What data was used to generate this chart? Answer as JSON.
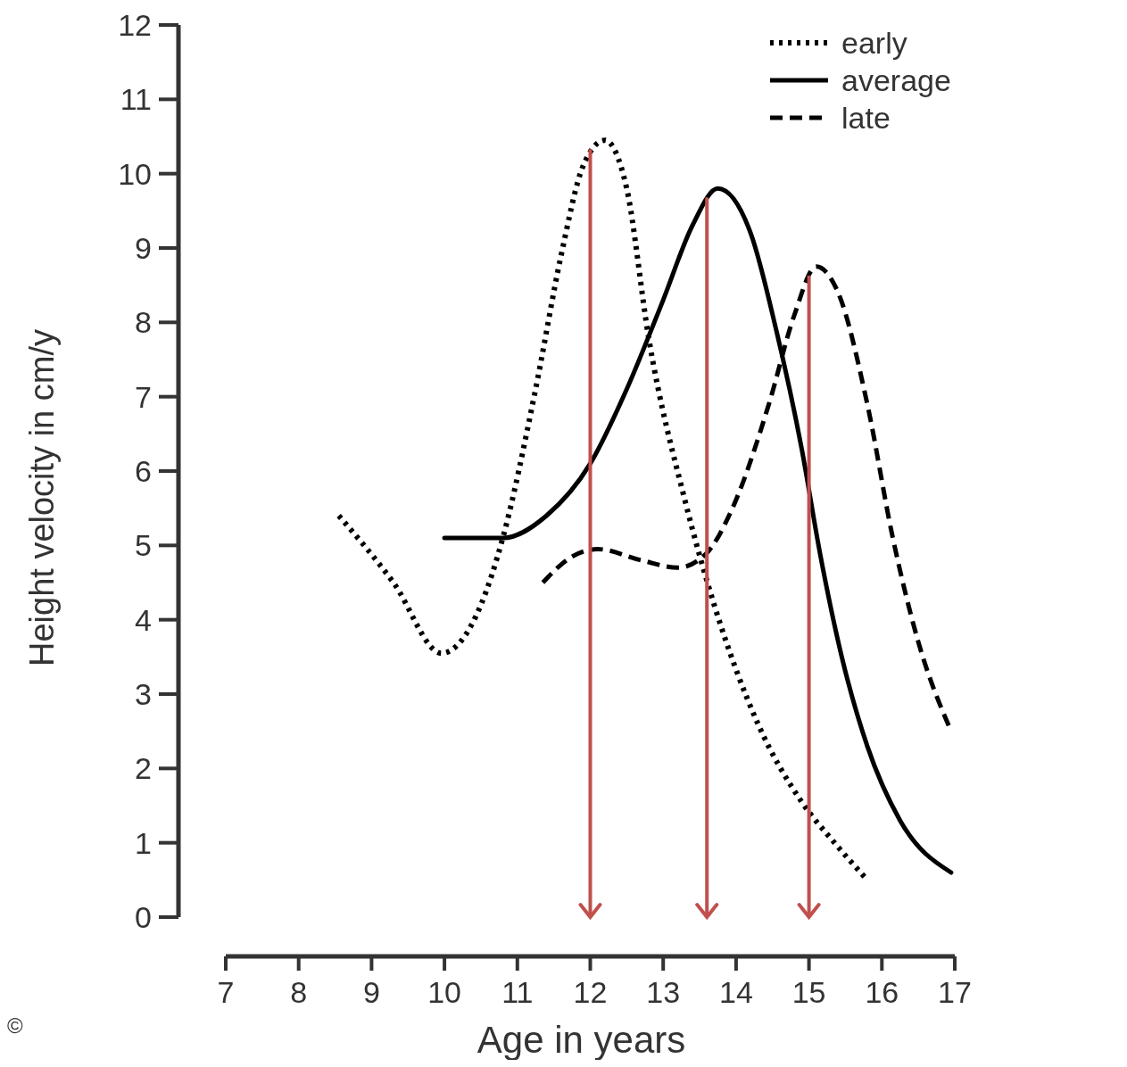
{
  "chart_data": {
    "type": "line",
    "xlabel": "Age in years",
    "ylabel": "Height velocity in cm/y",
    "xlim": [
      7,
      17
    ],
    "xticks": [
      7,
      8,
      9,
      10,
      11,
      12,
      13,
      14,
      15,
      16,
      17
    ],
    "ylim": [
      0,
      12
    ],
    "yticks": [
      0,
      1,
      2,
      3,
      4,
      5,
      6,
      7,
      8,
      9,
      10,
      11,
      12
    ],
    "legend": "top right",
    "grid": false,
    "annotations": [
      "©"
    ],
    "ref_lines": [
      {
        "axis": "x",
        "value": 12,
        "color": "#c0504d"
      },
      {
        "axis": "x",
        "value": 13.6,
        "color": "#c0504d"
      },
      {
        "axis": "x",
        "value": 15,
        "color": "#c0504d"
      }
    ],
    "series": [
      {
        "name": "early",
        "color": "#000000",
        "line_style": "dotted",
        "x": [
          8.55,
          9.3,
          9.96,
          10.5,
          10.8,
          11.25,
          11.6,
          11.9,
          12.2,
          12.5,
          12.8,
          13.3,
          13.7,
          14.3,
          14.9,
          15.35,
          15.8
        ],
        "values": [
          5.4,
          4.5,
          3.55,
          4.2,
          5.1,
          7.1,
          8.9,
          10.1,
          10.45,
          9.8,
          7.8,
          5.6,
          4.2,
          2.6,
          1.55,
          1.0,
          0.5
        ]
      },
      {
        "name": "average",
        "color": "#000000",
        "line_style": "solid",
        "x": [
          10,
          10.8,
          11.4,
          12,
          12.5,
          13,
          13.4,
          13.75,
          14.2,
          14.55,
          14.9,
          15.15,
          15.45,
          15.8,
          16.25,
          16.95
        ],
        "values": [
          5.1,
          5.1,
          5.4,
          6.1,
          7.1,
          8.3,
          9.3,
          9.8,
          9.2,
          7.9,
          6.3,
          4.9,
          3.5,
          2.3,
          1.3,
          0.6
        ]
      },
      {
        "name": "late",
        "color": "#000000",
        "line_style": "dashed",
        "x": [
          11.35,
          11.75,
          12.1,
          12.7,
          13.2,
          13.6,
          13.95,
          14.45,
          14.8,
          15.1,
          15.4,
          15.8,
          16.15,
          16.5,
          16.95
        ],
        "values": [
          4.5,
          4.85,
          4.95,
          4.8,
          4.7,
          4.9,
          5.5,
          6.9,
          8.1,
          8.75,
          8.4,
          6.9,
          5.1,
          3.7,
          2.5
        ]
      }
    ]
  }
}
